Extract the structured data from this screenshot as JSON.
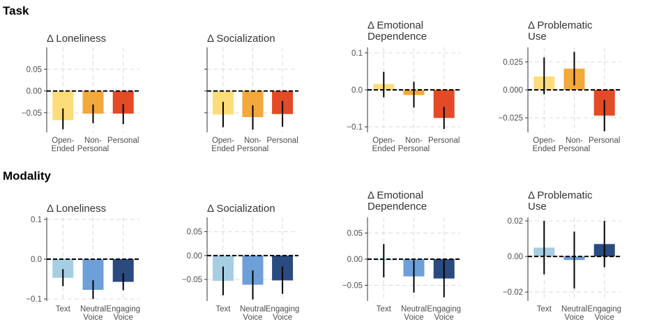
{
  "sections": [
    {
      "title": "Task"
    },
    {
      "title": "Modality"
    }
  ],
  "chart_data": [
    {
      "type": "bar",
      "section": "Task",
      "title_lines": [
        "Δ Loneliness"
      ],
      "categories": [
        [
          "Open-",
          "Ended"
        ],
        [
          "Non-",
          "Personal"
        ],
        [
          "Personal"
        ]
      ],
      "values": [
        -0.067,
        -0.052,
        -0.052
      ],
      "error_low": [
        -0.088,
        -0.074,
        -0.076
      ],
      "error_high": [
        -0.04,
        -0.031,
        -0.03
      ],
      "colors": [
        "#FDDC7A",
        "#F3A83B",
        "#E34A26"
      ],
      "ylim": [
        -0.095,
        0.1
      ],
      "yticks": [
        -0.05,
        0.0,
        0.05
      ],
      "ytick_labels": [
        "−0.05",
        "0.00",
        "0.05"
      ],
      "grid": true,
      "show_yticks": true
    },
    {
      "type": "bar",
      "section": "Task",
      "title_lines": [
        "Δ Socialization"
      ],
      "categories": [
        [
          "Open-",
          "Ended"
        ],
        [
          "Non-",
          "Personal"
        ],
        [
          "Personal"
        ]
      ],
      "values": [
        -0.054,
        -0.06,
        -0.053
      ],
      "error_low": [
        -0.083,
        -0.089,
        -0.082
      ],
      "error_high": [
        -0.025,
        -0.033,
        -0.023
      ],
      "colors": [
        "#FDDC7A",
        "#F3A83B",
        "#E34A26"
      ],
      "ylim": [
        -0.095,
        0.1
      ],
      "yticks": [
        -0.05,
        0.0,
        0.05
      ],
      "ytick_labels": [
        "",
        "",
        ""
      ],
      "grid": true,
      "show_yticks": true
    },
    {
      "type": "bar",
      "section": "Task",
      "title_lines": [
        "Δ Emotional",
        "Dependence"
      ],
      "categories": [
        [
          "Open-",
          "Ended"
        ],
        [
          "Non-",
          "Personal"
        ],
        [
          "Personal"
        ]
      ],
      "values": [
        0.016,
        -0.014,
        -0.076
      ],
      "error_low": [
        -0.02,
        -0.048,
        -0.106
      ],
      "error_high": [
        0.049,
        0.022,
        -0.046
      ],
      "colors": [
        "#FDDC7A",
        "#F3A83B",
        "#E34A26"
      ],
      "ylim": [
        -0.115,
        0.115
      ],
      "yticks": [
        -0.1,
        0.0,
        0.1
      ],
      "ytick_labels": [
        "−0.1",
        "0.0",
        "0.1"
      ],
      "grid": true,
      "show_yticks": true
    },
    {
      "type": "bar",
      "section": "Task",
      "title_lines": [
        "Δ Problematic",
        "Use"
      ],
      "categories": [
        [
          "Open-",
          "Ended"
        ],
        [
          "Non-",
          "Personal"
        ],
        [
          "Personal"
        ]
      ],
      "values": [
        0.012,
        0.019,
        -0.023
      ],
      "error_low": [
        -0.004,
        0.004,
        -0.037
      ],
      "error_high": [
        0.029,
        0.034,
        -0.009
      ],
      "colors": [
        "#FDDC7A",
        "#F3A83B",
        "#E34A26"
      ],
      "ylim": [
        -0.038,
        0.038
      ],
      "yticks": [
        -0.025,
        0.0,
        0.025
      ],
      "ytick_labels": [
        "−0.025",
        "0.000",
        "0.025"
      ],
      "grid": true,
      "show_yticks": true
    },
    {
      "type": "bar",
      "section": "Modality",
      "title_lines": [
        "Δ Loneliness"
      ],
      "categories": [
        [
          "Text"
        ],
        [
          "Neutral",
          "Voice"
        ],
        [
          "Engaging",
          "Voice"
        ]
      ],
      "values": [
        -0.047,
        -0.077,
        -0.057
      ],
      "error_low": [
        -0.068,
        -0.1,
        -0.078
      ],
      "error_high": [
        -0.025,
        -0.053,
        -0.035
      ],
      "colors": [
        "#A6CEE3",
        "#6D9FD8",
        "#2B4A80"
      ],
      "ylim": [
        -0.105,
        0.105
      ],
      "yticks": [
        -0.1,
        0.0,
        0.1
      ],
      "ytick_labels": [
        "−0.1",
        "0.0",
        "0.1"
      ],
      "grid": true,
      "show_yticks": true
    },
    {
      "type": "bar",
      "section": "Modality",
      "title_lines": [
        "Δ Socialization"
      ],
      "categories": [
        [
          "Text"
        ],
        [
          "Neutral",
          "Voice"
        ],
        [
          "Engaging",
          "Voice"
        ]
      ],
      "values": [
        -0.053,
        -0.061,
        -0.052
      ],
      "error_low": [
        -0.083,
        -0.092,
        -0.08
      ],
      "error_high": [
        -0.023,
        -0.031,
        -0.023
      ],
      "colors": [
        "#A6CEE3",
        "#6D9FD8",
        "#2B4A80"
      ],
      "ylim": [
        -0.095,
        0.08
      ],
      "yticks": [
        -0.05,
        0.0,
        0.05
      ],
      "ytick_labels": [
        "−0.05",
        "0.00",
        "0.05"
      ],
      "grid": true,
      "show_yticks": true
    },
    {
      "type": "bar",
      "section": "Modality",
      "title_lines": [
        "Δ Emotional",
        "Dependence"
      ],
      "categories": [
        [
          "Text"
        ],
        [
          "Neutral",
          "Voice"
        ],
        [
          "Engaging",
          "Voice"
        ]
      ],
      "values": [
        -0.002,
        -0.033,
        -0.037
      ],
      "error_low": [
        -0.035,
        -0.064,
        -0.073
      ],
      "error_high": [
        0.029,
        -0.002,
        -0.002
      ],
      "colors": [
        "#A6CEE3",
        "#6D9FD8",
        "#2B4A80"
      ],
      "ylim": [
        -0.08,
        0.08
      ],
      "yticks": [
        -0.05,
        0.0,
        0.05
      ],
      "ytick_labels": [
        "−0.05",
        "0.00",
        "0.05"
      ],
      "grid": true,
      "show_yticks": true
    },
    {
      "type": "bar",
      "section": "Modality",
      "title_lines": [
        "Δ Problematic",
        "Use"
      ],
      "categories": [
        [
          "Text"
        ],
        [
          "Neutral",
          "Voice"
        ],
        [
          "Engaging",
          "Voice"
        ]
      ],
      "values": [
        0.005,
        -0.002,
        0.007
      ],
      "error_low": [
        -0.01,
        -0.018,
        -0.006
      ],
      "error_high": [
        0.02,
        0.014,
        0.02
      ],
      "colors": [
        "#A6CEE3",
        "#6D9FD8",
        "#2B4A80"
      ],
      "ylim": [
        -0.025,
        0.022
      ],
      "yticks": [
        -0.02,
        0.0,
        0.02
      ],
      "ytick_labels": [
        "−0.02",
        "0.00",
        "0.02"
      ],
      "grid": true,
      "show_yticks": true
    }
  ]
}
